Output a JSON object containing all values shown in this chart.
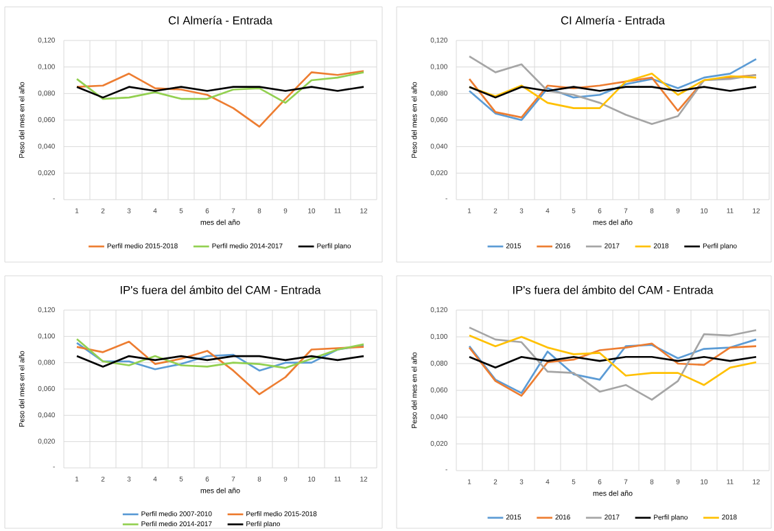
{
  "chart_data": [
    {
      "type": "line",
      "title": "CI Almería - Entrada",
      "xlabel": "mes del año",
      "ylabel": "Peso del mes en el año",
      "categories": [
        "1",
        "2",
        "3",
        "4",
        "5",
        "6",
        "7",
        "8",
        "9",
        "10",
        "11",
        "12"
      ],
      "ylim": [
        0,
        0.12
      ],
      "yticks": [
        {
          "value": 0,
          "label": "-"
        },
        {
          "value": 0.02,
          "label": "0,020"
        },
        {
          "value": 0.04,
          "label": "0,040"
        },
        {
          "value": 0.06,
          "label": "0,060"
        },
        {
          "value": 0.08,
          "label": "0,080"
        },
        {
          "value": 0.1,
          "label": "0,100"
        },
        {
          "value": 0.12,
          "label": "0,120"
        }
      ],
      "grid": true,
      "legend": "bottom",
      "series": [
        {
          "name": "Perfil medio 2015-2018",
          "color": "#ed7d31",
          "values": [
            0.085,
            0.086,
            0.095,
            0.084,
            0.083,
            0.079,
            0.069,
            0.055,
            0.076,
            0.096,
            0.094,
            0.097
          ]
        },
        {
          "name": "Perfil medio 2014-2017",
          "color": "#92d050",
          "values": [
            0.091,
            0.076,
            0.077,
            0.081,
            0.076,
            0.076,
            0.083,
            0.084,
            0.073,
            0.09,
            0.092,
            0.096
          ]
        },
        {
          "name": "Perfil plano",
          "color": "#000000",
          "values": [
            0.085,
            0.077,
            0.085,
            0.082,
            0.085,
            0.082,
            0.085,
            0.085,
            0.082,
            0.085,
            0.082,
            0.085
          ]
        }
      ]
    },
    {
      "type": "line",
      "title": "CI Almería - Entrada",
      "xlabel": "mes del año",
      "ylabel": "Peso del mes en el año",
      "categories": [
        "1",
        "2",
        "3",
        "4",
        "5",
        "6",
        "7",
        "8",
        "9",
        "10",
        "11",
        "12"
      ],
      "ylim": [
        0,
        0.12
      ],
      "yticks": [
        {
          "value": 0,
          "label": "-"
        },
        {
          "value": 0.02,
          "label": "0,020"
        },
        {
          "value": 0.04,
          "label": "0,040"
        },
        {
          "value": 0.06,
          "label": "0,060"
        },
        {
          "value": 0.08,
          "label": "0,080"
        },
        {
          "value": 0.1,
          "label": "0,100"
        },
        {
          "value": 0.12,
          "label": "0,120"
        }
      ],
      "grid": true,
      "legend": "bottom",
      "series": [
        {
          "name": "2015",
          "color": "#5b9bd5",
          "values": [
            0.082,
            0.065,
            0.06,
            0.084,
            0.077,
            0.079,
            0.087,
            0.091,
            0.084,
            0.092,
            0.095,
            0.106
          ]
        },
        {
          "name": "2016",
          "color": "#ed7d31",
          "values": [
            0.091,
            0.066,
            0.062,
            0.086,
            0.084,
            0.086,
            0.089,
            0.092,
            0.067,
            0.09,
            0.092,
            0.094
          ]
        },
        {
          "name": "2017",
          "color": "#a5a5a5",
          "values": [
            0.108,
            0.096,
            0.102,
            0.082,
            0.079,
            0.073,
            0.064,
            0.057,
            0.063,
            0.09,
            0.091,
            0.094
          ]
        },
        {
          "name": "2018",
          "color": "#ffc000",
          "values": [
            0.085,
            0.078,
            0.086,
            0.073,
            0.069,
            0.069,
            0.089,
            0.095,
            0.079,
            0.09,
            0.093,
            0.092
          ]
        },
        {
          "name": "Perfil plano",
          "color": "#000000",
          "values": [
            0.085,
            0.077,
            0.085,
            0.082,
            0.085,
            0.082,
            0.085,
            0.085,
            0.082,
            0.085,
            0.082,
            0.085
          ]
        }
      ]
    },
    {
      "type": "line",
      "title": "IP's fuera del ámbito del CAM - Entrada",
      "xlabel": "mes del año",
      "ylabel": "Peso del mes en el año",
      "categories": [
        "1",
        "2",
        "3",
        "4",
        "5",
        "6",
        "7",
        "8",
        "9",
        "10",
        "11",
        "12"
      ],
      "ylim": [
        0,
        0.12
      ],
      "yticks": [
        {
          "value": 0,
          "label": "-"
        },
        {
          "value": 0.02,
          "label": "0,020"
        },
        {
          "value": 0.04,
          "label": "0,040"
        },
        {
          "value": 0.06,
          "label": "0,060"
        },
        {
          "value": 0.08,
          "label": "0,080"
        },
        {
          "value": 0.1,
          "label": "0,100"
        },
        {
          "value": 0.12,
          "label": "0,120"
        }
      ],
      "grid": true,
      "legend": "bottom",
      "series": [
        {
          "name": "Perfil medio 2007-2010",
          "color": "#5b9bd5",
          "values": [
            0.095,
            0.081,
            0.081,
            0.075,
            0.079,
            0.085,
            0.086,
            0.074,
            0.08,
            0.08,
            0.09,
            0.093
          ]
        },
        {
          "name": "Perfil medio 2015-2018",
          "color": "#ed7d31",
          "values": [
            0.092,
            0.088,
            0.096,
            0.079,
            0.083,
            0.089,
            0.074,
            0.056,
            0.069,
            0.09,
            0.091,
            0.092
          ]
        },
        {
          "name": "Perfil medio 2014-2017",
          "color": "#92d050",
          "values": [
            0.098,
            0.081,
            0.078,
            0.085,
            0.078,
            0.077,
            0.08,
            0.079,
            0.076,
            0.083,
            0.09,
            0.094
          ]
        },
        {
          "name": "Perfil plano",
          "color": "#000000",
          "values": [
            0.085,
            0.077,
            0.085,
            0.082,
            0.085,
            0.082,
            0.085,
            0.085,
            0.082,
            0.085,
            0.082,
            0.085
          ]
        }
      ]
    },
    {
      "type": "line",
      "title": "IP's fuera del ámbito del CAM - Entrada",
      "xlabel": "mes del año",
      "ylabel": "Peso del mes en el año",
      "categories": [
        "1",
        "2",
        "3",
        "4",
        "5",
        "6",
        "7",
        "8",
        "9",
        "10",
        "11",
        "12"
      ],
      "ylim": [
        0,
        0.12
      ],
      "yticks": [
        {
          "value": 0,
          "label": "-"
        },
        {
          "value": 0.02,
          "label": "0,020"
        },
        {
          "value": 0.04,
          "label": "0,040"
        },
        {
          "value": 0.06,
          "label": "0,060"
        },
        {
          "value": 0.08,
          "label": "0,080"
        },
        {
          "value": 0.1,
          "label": "0,100"
        },
        {
          "value": 0.12,
          "label": "0,120"
        }
      ],
      "grid": true,
      "legend": "bottom",
      "series": [
        {
          "name": "2015",
          "color": "#5b9bd5",
          "values": [
            0.093,
            0.068,
            0.058,
            0.089,
            0.072,
            0.068,
            0.093,
            0.094,
            0.084,
            0.091,
            0.092,
            0.098
          ]
        },
        {
          "name": "2016",
          "color": "#ed7d31",
          "values": [
            0.092,
            0.067,
            0.056,
            0.081,
            0.083,
            0.09,
            0.092,
            0.095,
            0.08,
            0.079,
            0.092,
            0.093
          ]
        },
        {
          "name": "2017",
          "color": "#a5a5a5",
          "values": [
            0.107,
            0.098,
            0.096,
            0.074,
            0.073,
            0.059,
            0.064,
            0.053,
            0.067,
            0.102,
            0.101,
            0.105
          ]
        },
        {
          "name": "Perfil plano",
          "color": "#000000",
          "values": [
            0.085,
            0.077,
            0.085,
            0.082,
            0.085,
            0.082,
            0.085,
            0.085,
            0.082,
            0.085,
            0.082,
            0.085
          ]
        },
        {
          "name": "2018",
          "color": "#ffc000",
          "values": [
            0.101,
            0.093,
            0.1,
            0.092,
            0.087,
            0.088,
            0.071,
            0.073,
            0.073,
            0.064,
            0.077,
            0.081
          ]
        }
      ]
    }
  ]
}
